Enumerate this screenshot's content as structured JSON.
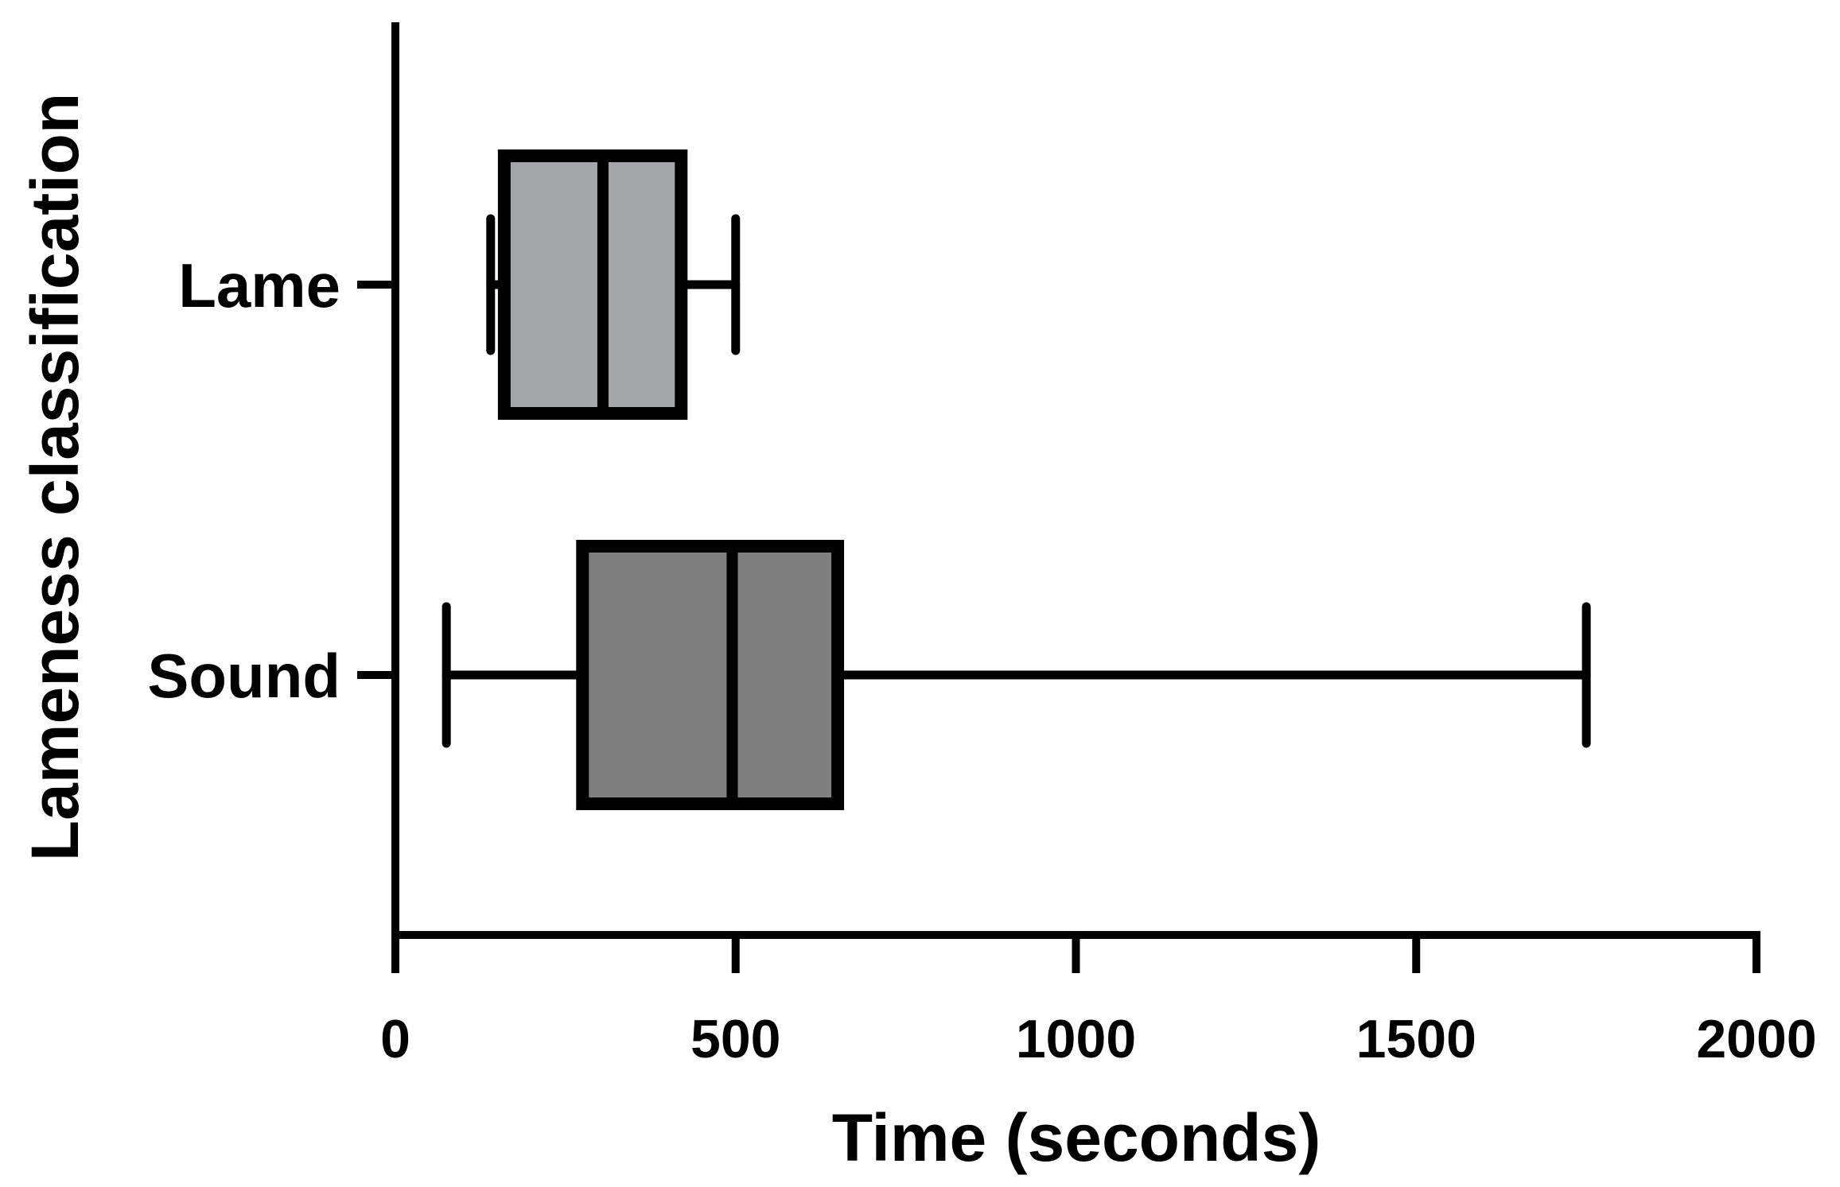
{
  "chart_data": {
    "type": "boxplot",
    "orientation": "horizontal",
    "xlabel": "Time (seconds)",
    "ylabel": "Lameness classification",
    "xlim": [
      0,
      2000
    ],
    "x_ticks": [
      "0",
      "500",
      "1000",
      "1500",
      "2000"
    ],
    "x_tick_values": [
      0,
      500,
      1000,
      1500,
      2000
    ],
    "grid": false,
    "categories": [
      "Lame",
      "Sound"
    ],
    "series": [
      {
        "category": "Lame",
        "min": 140,
        "q1": 160,
        "median": 305,
        "q3": 420,
        "max": 500,
        "fill": "#a5a6a9"
      },
      {
        "category": "Sound",
        "min": 75,
        "q1": 275,
        "median": 495,
        "q3": 650,
        "max": 1750,
        "fill": "#7f7f7f"
      }
    ]
  }
}
